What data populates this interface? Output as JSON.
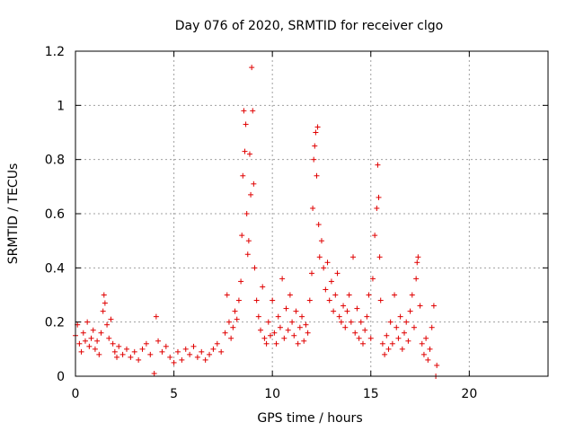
{
  "chart_data": {
    "type": "scatter",
    "title": "Day 076 of 2020, SRMTID for receiver clgo",
    "xlabel": "GPS time / hours",
    "ylabel": "SRMTID / TECUs",
    "xlim": [
      0,
      24
    ],
    "ylim": [
      0,
      1.2
    ],
    "x_ticks": [
      0,
      5,
      10,
      15,
      20
    ],
    "y_ticks": [
      0,
      0.2,
      0.4,
      0.6,
      0.8,
      1,
      1.2
    ],
    "x_tick_labels": [
      "0",
      "5",
      "10",
      "15",
      "20"
    ],
    "y_tick_labels": [
      "0",
      "0.2",
      "0.4",
      "0.6",
      "0.8",
      "1",
      "1.2"
    ],
    "grid": true,
    "marker": "plus",
    "series": [
      {
        "name": "SRMTID",
        "color": "#e00000",
        "points": [
          [
            0.0,
            0.15
          ],
          [
            0.1,
            0.19
          ],
          [
            0.2,
            0.12
          ],
          [
            0.3,
            0.09
          ],
          [
            0.4,
            0.16
          ],
          [
            0.5,
            0.13
          ],
          [
            0.6,
            0.2
          ],
          [
            0.7,
            0.11
          ],
          [
            0.8,
            0.14
          ],
          [
            0.9,
            0.17
          ],
          [
            1.0,
            0.1
          ],
          [
            1.1,
            0.13
          ],
          [
            1.2,
            0.08
          ],
          [
            1.3,
            0.16
          ],
          [
            1.4,
            0.24
          ],
          [
            1.45,
            0.3
          ],
          [
            1.5,
            0.27
          ],
          [
            1.6,
            0.19
          ],
          [
            1.7,
            0.14
          ],
          [
            1.8,
            0.21
          ],
          [
            1.9,
            0.12
          ],
          [
            2.0,
            0.09
          ],
          [
            2.1,
            0.07
          ],
          [
            2.2,
            0.11
          ],
          [
            2.4,
            0.08
          ],
          [
            2.6,
            0.1
          ],
          [
            2.8,
            0.07
          ],
          [
            3.0,
            0.09
          ],
          [
            3.2,
            0.06
          ],
          [
            3.4,
            0.1
          ],
          [
            3.6,
            0.12
          ],
          [
            3.8,
            0.08
          ],
          [
            4.0,
            0.01
          ],
          [
            4.1,
            0.22
          ],
          [
            4.2,
            0.13
          ],
          [
            4.4,
            0.09
          ],
          [
            4.6,
            0.11
          ],
          [
            4.8,
            0.07
          ],
          [
            5.0,
            0.05
          ],
          [
            5.2,
            0.09
          ],
          [
            5.4,
            0.06
          ],
          [
            5.6,
            0.1
          ],
          [
            5.8,
            0.08
          ],
          [
            6.0,
            0.11
          ],
          [
            6.2,
            0.07
          ],
          [
            6.4,
            0.09
          ],
          [
            6.6,
            0.06
          ],
          [
            6.8,
            0.08
          ],
          [
            7.0,
            0.1
          ],
          [
            7.2,
            0.12
          ],
          [
            7.4,
            0.09
          ],
          [
            7.6,
            0.16
          ],
          [
            7.7,
            0.3
          ],
          [
            7.8,
            0.2
          ],
          [
            7.9,
            0.14
          ],
          [
            8.0,
            0.18
          ],
          [
            8.1,
            0.24
          ],
          [
            8.2,
            0.21
          ],
          [
            8.3,
            0.28
          ],
          [
            8.4,
            0.35
          ],
          [
            8.45,
            0.52
          ],
          [
            8.5,
            0.74
          ],
          [
            8.55,
            0.98
          ],
          [
            8.6,
            0.83
          ],
          [
            8.65,
            0.93
          ],
          [
            8.7,
            0.6
          ],
          [
            8.75,
            0.45
          ],
          [
            8.8,
            0.5
          ],
          [
            8.85,
            0.82
          ],
          [
            8.9,
            0.67
          ],
          [
            8.95,
            1.14
          ],
          [
            9.0,
            0.98
          ],
          [
            9.05,
            0.71
          ],
          [
            9.1,
            0.4
          ],
          [
            9.2,
            0.28
          ],
          [
            9.3,
            0.22
          ],
          [
            9.4,
            0.17
          ],
          [
            9.5,
            0.33
          ],
          [
            9.6,
            0.14
          ],
          [
            9.7,
            0.12
          ],
          [
            9.8,
            0.2
          ],
          [
            9.9,
            0.15
          ],
          [
            10.0,
            0.28
          ],
          [
            10.1,
            0.16
          ],
          [
            10.2,
            0.12
          ],
          [
            10.3,
            0.22
          ],
          [
            10.4,
            0.18
          ],
          [
            10.5,
            0.36
          ],
          [
            10.6,
            0.14
          ],
          [
            10.7,
            0.25
          ],
          [
            10.8,
            0.17
          ],
          [
            10.9,
            0.3
          ],
          [
            11.0,
            0.2
          ],
          [
            11.1,
            0.15
          ],
          [
            11.2,
            0.24
          ],
          [
            11.3,
            0.12
          ],
          [
            11.4,
            0.18
          ],
          [
            11.5,
            0.22
          ],
          [
            11.6,
            0.13
          ],
          [
            11.7,
            0.19
          ],
          [
            11.8,
            0.16
          ],
          [
            11.9,
            0.28
          ],
          [
            12.0,
            0.38
          ],
          [
            12.05,
            0.62
          ],
          [
            12.1,
            0.8
          ],
          [
            12.15,
            0.85
          ],
          [
            12.2,
            0.9
          ],
          [
            12.25,
            0.74
          ],
          [
            12.3,
            0.92
          ],
          [
            12.35,
            0.56
          ],
          [
            12.4,
            0.44
          ],
          [
            12.5,
            0.5
          ],
          [
            12.6,
            0.4
          ],
          [
            12.7,
            0.32
          ],
          [
            12.8,
            0.42
          ],
          [
            12.9,
            0.28
          ],
          [
            13.0,
            0.35
          ],
          [
            13.1,
            0.24
          ],
          [
            13.2,
            0.3
          ],
          [
            13.3,
            0.38
          ],
          [
            13.4,
            0.22
          ],
          [
            13.5,
            0.2
          ],
          [
            13.6,
            0.26
          ],
          [
            13.7,
            0.18
          ],
          [
            13.8,
            0.24
          ],
          [
            13.9,
            0.3
          ],
          [
            14.0,
            0.2
          ],
          [
            14.1,
            0.44
          ],
          [
            14.2,
            0.16
          ],
          [
            14.3,
            0.25
          ],
          [
            14.4,
            0.14
          ],
          [
            14.5,
            0.2
          ],
          [
            14.6,
            0.12
          ],
          [
            14.7,
            0.17
          ],
          [
            14.8,
            0.22
          ],
          [
            14.9,
            0.3
          ],
          [
            15.0,
            0.14
          ],
          [
            15.1,
            0.36
          ],
          [
            15.2,
            0.52
          ],
          [
            15.3,
            0.62
          ],
          [
            15.35,
            0.78
          ],
          [
            15.4,
            0.66
          ],
          [
            15.45,
            0.44
          ],
          [
            15.5,
            0.28
          ],
          [
            15.6,
            0.12
          ],
          [
            15.7,
            0.08
          ],
          [
            15.8,
            0.15
          ],
          [
            15.9,
            0.1
          ],
          [
            16.0,
            0.2
          ],
          [
            16.1,
            0.12
          ],
          [
            16.2,
            0.3
          ],
          [
            16.3,
            0.18
          ],
          [
            16.4,
            0.14
          ],
          [
            16.5,
            0.22
          ],
          [
            16.6,
            0.1
          ],
          [
            16.7,
            0.16
          ],
          [
            16.8,
            0.2
          ],
          [
            16.9,
            0.13
          ],
          [
            17.0,
            0.24
          ],
          [
            17.1,
            0.3
          ],
          [
            17.2,
            0.18
          ],
          [
            17.3,
            0.36
          ],
          [
            17.35,
            0.42
          ],
          [
            17.4,
            0.44
          ],
          [
            17.5,
            0.26
          ],
          [
            17.6,
            0.12
          ],
          [
            17.7,
            0.08
          ],
          [
            17.8,
            0.14
          ],
          [
            17.9,
            0.06
          ],
          [
            18.0,
            0.1
          ],
          [
            18.1,
            0.18
          ],
          [
            18.2,
            0.26
          ],
          [
            18.3,
            0.0
          ],
          [
            18.35,
            0.04
          ]
        ]
      }
    ]
  }
}
